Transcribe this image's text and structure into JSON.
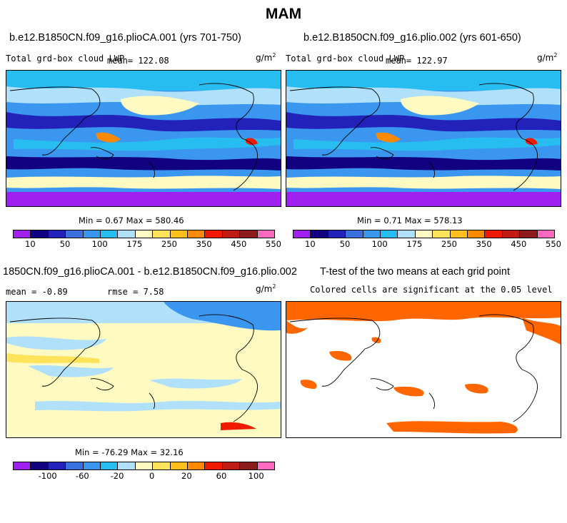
{
  "figure": {
    "title": "MAM"
  },
  "chart_data": [
    {
      "type": "heatmap",
      "title": "b.e12.B1850CN.f09_g16.plioCA.001 (yrs 701-750)",
      "left_label": "Total grd-box cloud LWP",
      "mean_text": "mean= 122.08",
      "units": "g/m",
      "units_sup": "2",
      "min": 0.67,
      "max": 580.46,
      "stats_text": "Min =   0.67 Max = 580.46"
    },
    {
      "type": "heatmap",
      "title": "b.e12.B1850CN.f09_g16.plio.002 (yrs 601-650)",
      "left_label": "Total grd-box cloud LWP",
      "mean_text": "mean= 122.97",
      "units": "g/m",
      "units_sup": "2",
      "min": 0.71,
      "max": 578.13,
      "stats_text": "Min =   0.71 Max = 578.13"
    },
    {
      "type": "heatmap",
      "title": "1850CN.f09_g16.plioCA.001 - b.e12.B1850CN.f09_g16.plio.002",
      "mean_text": "mean =  -0.89",
      "rmse_text": "rmse =   7.58",
      "units": "g/m",
      "units_sup": "2",
      "min": -76.29,
      "max": 32.16,
      "stats_text": "Min = -76.29 Max =  32.16"
    },
    {
      "type": "heatmap",
      "title": "T-test of the two means at each grid point",
      "subtitle": "Colored cells are significant at the 0.05 level",
      "significant_color": "#ff6600"
    }
  ],
  "colorbars": {
    "abs": {
      "colors": [
        "#a020f0",
        "#110080",
        "#2222bb",
        "#3a6fe0",
        "#3a96ee",
        "#27bdf0",
        "#b0e0fa",
        "#fffac2",
        "#ffe35a",
        "#ffbf1c",
        "#ff8a00",
        "#ef1a00",
        "#c11c14",
        "#8a1c1c",
        "#ff6ac0"
      ],
      "tick_labels": [
        "10",
        "50",
        "100",
        "175",
        "250",
        "350",
        "450",
        "550"
      ],
      "tick_positions": [
        1,
        3,
        5,
        7,
        9,
        11,
        13,
        15
      ]
    },
    "diff": {
      "colors": [
        "#a020f0",
        "#110080",
        "#2222bb",
        "#3a6fe0",
        "#3a96ee",
        "#27bdf0",
        "#b0e0fa",
        "#fffac2",
        "#ffe35a",
        "#ffbf1c",
        "#ff8a00",
        "#ef1a00",
        "#c11c14",
        "#8a1c1c",
        "#ff6ac0"
      ],
      "tick_labels": [
        "-100",
        "-60",
        "-20",
        "0",
        "20",
        "60",
        "100"
      ],
      "tick_positions": [
        2,
        4,
        6,
        8,
        10,
        12,
        14
      ]
    }
  }
}
